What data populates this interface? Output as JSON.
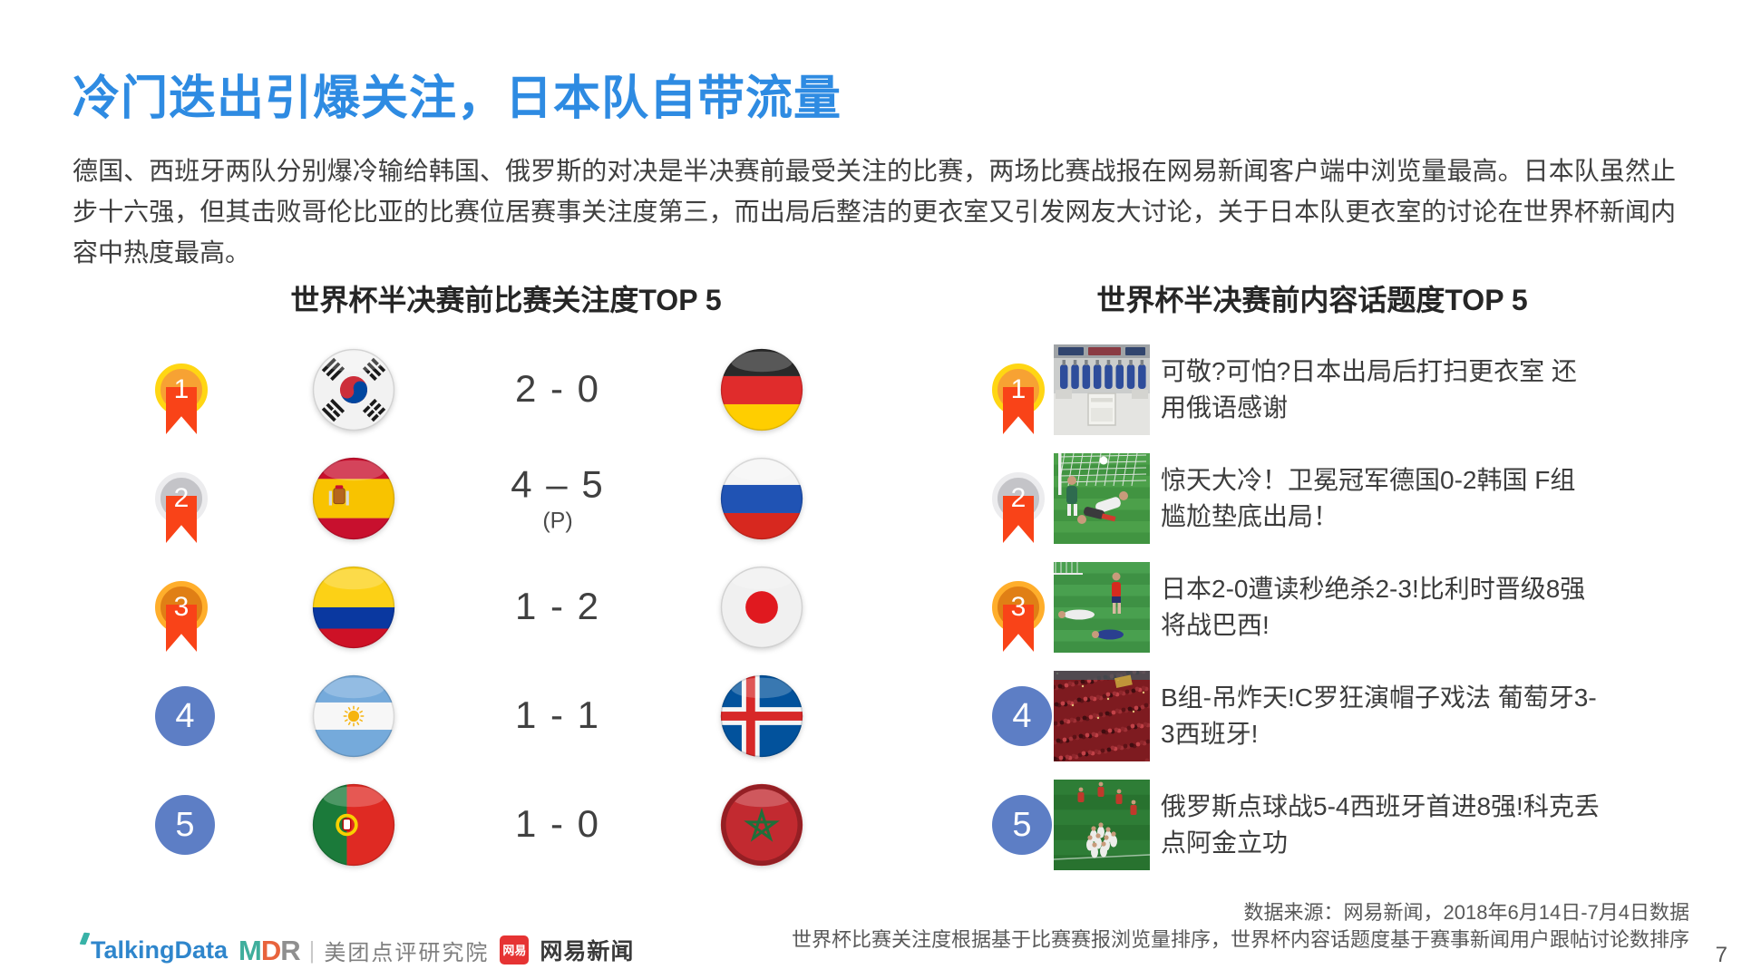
{
  "page": {
    "title": "冷门迭出引爆关注，日本队自带流量",
    "intro": "德国、西班牙两队分别爆冷输给韩国、俄罗斯的对决是半决赛前最受关注的比赛，两场比赛战报在网易新闻客户端中浏览量最高。日本队虽然止步十六强，但其击败哥伦比亚的比赛位居赛事关注度第三，而出局后整洁的更衣室又引发网友大讨论，关于日本队更衣室的讨论在世界杯新闻内容中热度最高。",
    "page_number": "7"
  },
  "colors": {
    "title_blue": "#2E8BE2",
    "medal_gold": "#F7A233",
    "medal_gold_ring": "#FFD613",
    "medal_silver": "#C4C4C8",
    "medal_silver_ring": "#ECECEE",
    "medal_bronze": "#E07F15",
    "medal_bronze_ring": "#FFAE2B",
    "medal_plain_blue": "#5D7EC5",
    "ribbon_red": "#F94318"
  },
  "left_panel": {
    "title": "世界杯半决赛前比赛关注度TOP 5",
    "rows": [
      {
        "rank": "1",
        "medal": "gold",
        "home_flag": "south-korea",
        "score": "2 - 0",
        "away_flag": "germany"
      },
      {
        "rank": "2",
        "medal": "silver",
        "home_flag": "spain",
        "score": "4 – 5",
        "score_note": "(P)",
        "away_flag": "russia"
      },
      {
        "rank": "3",
        "medal": "bronze",
        "home_flag": "colombia",
        "score": "1 - 2",
        "away_flag": "japan"
      },
      {
        "rank": "4",
        "medal": "plain",
        "home_flag": "argentina",
        "score": "1 - 1",
        "away_flag": "iceland"
      },
      {
        "rank": "5",
        "medal": "plain",
        "home_flag": "portugal",
        "score": "1 - 0",
        "away_flag": "morocco"
      }
    ]
  },
  "right_panel": {
    "title": "世界杯半决赛前内容话题度TOP 5",
    "rows": [
      {
        "rank": "1",
        "medal": "gold",
        "thumbnail": "locker-room",
        "headline": "可敬?可怕?日本出局后打扫更衣室 还用俄语感谢"
      },
      {
        "rank": "2",
        "medal": "silver",
        "thumbnail": "goal-scramble",
        "headline": "惊天大冷！卫冕冠军德国0-2韩国 F组尴尬垫底出局！"
      },
      {
        "rank": "3",
        "medal": "bronze",
        "thumbnail": "players-down",
        "headline": "日本2-0遭读秒绝杀2-3!比利时晋级8强将战巴西!"
      },
      {
        "rank": "4",
        "medal": "plain",
        "thumbnail": "red-crowd",
        "headline": "B组-吊炸天!C罗狂演帽子戏法 葡萄牙3-3西班牙!"
      },
      {
        "rank": "5",
        "medal": "plain",
        "thumbnail": "team-celebration",
        "headline": "俄罗斯点球战5-4西班牙首进8强!科克丢点阿金立功"
      }
    ]
  },
  "footer": {
    "source_line1": "数据来源：网易新闻，2018年6月14日-7月4日数据",
    "source_line2": "世界杯比赛关注度根据基于比赛赛报浏览量排序，世界杯内容话题度基于赛事新闻用户跟帖讨论数排序",
    "logos": {
      "talkingdata": "TalkingData",
      "mdr": "MDR",
      "meituan": "美团点评研究院",
      "netease_badge": "网易",
      "netease": "网易新闻"
    }
  }
}
